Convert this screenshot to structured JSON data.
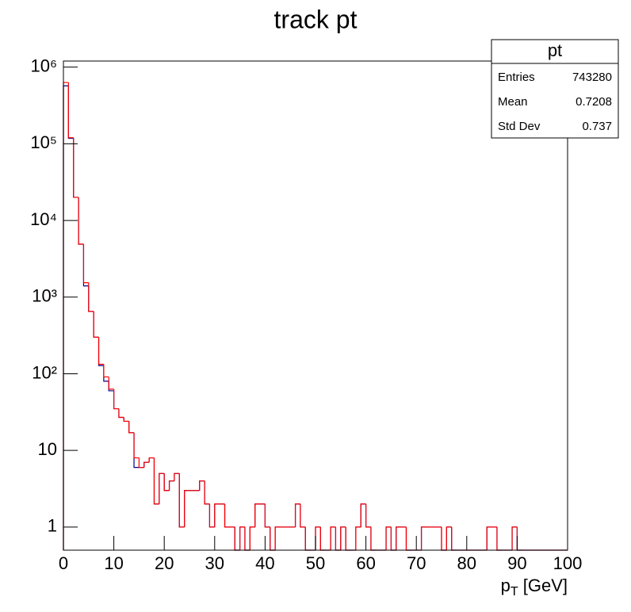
{
  "chart_data": {
    "type": "histogram",
    "title": "track pt",
    "x_label": [
      "p",
      "T",
      " [GeV]"
    ],
    "bins": [
      0,
      1,
      2,
      3,
      4,
      5,
      6,
      7,
      8,
      9,
      10,
      11,
      12,
      13,
      14,
      15,
      16,
      17,
      18,
      19,
      20,
      21,
      22,
      23,
      24,
      25,
      26,
      27,
      28,
      29,
      30,
      31,
      32,
      33,
      34,
      35,
      36,
      37,
      38,
      39,
      40,
      41,
      42,
      43,
      44,
      45,
      46,
      47,
      48,
      49,
      50,
      51,
      52,
      53,
      54,
      55,
      56,
      57,
      58,
      59,
      60,
      61,
      62,
      63,
      64,
      65,
      66,
      67,
      68,
      69,
      70,
      71,
      72,
      73,
      74,
      75,
      76,
      77,
      78,
      79,
      80,
      81,
      82,
      83,
      84,
      85,
      86,
      87,
      88,
      89,
      90,
      91,
      92,
      93,
      94,
      95,
      96,
      97,
      98,
      99,
      100
    ],
    "series": [
      {
        "name": "pt",
        "color": "#00008b",
        "values": [
          570000,
          118000,
          20000,
          4900,
          1400,
          650,
          300,
          128,
          80,
          60,
          35,
          27,
          24,
          17,
          6,
          6,
          7,
          8,
          2,
          5,
          3,
          4,
          5,
          1,
          3,
          3,
          3,
          4,
          2,
          1,
          2,
          2,
          1,
          1,
          0,
          1,
          0,
          1,
          2,
          2,
          1,
          0,
          1,
          1,
          1,
          1,
          2,
          1,
          0,
          0,
          1,
          0,
          0,
          1,
          0,
          1,
          0,
          0,
          1,
          2,
          1,
          0,
          0,
          0,
          1,
          0,
          1,
          1,
          0,
          0,
          0,
          1,
          1,
          1,
          1,
          0,
          1,
          0,
          0,
          0,
          0,
          0,
          0,
          0,
          1,
          1,
          0,
          0,
          0,
          1,
          0,
          0,
          0,
          0,
          0,
          0,
          0,
          0,
          0,
          0
        ]
      },
      {
        "name": "pt",
        "color": "#ff0000",
        "values": [
          630000,
          120000,
          20000,
          4900,
          1540,
          650,
          300,
          133,
          91,
          63,
          35,
          27,
          24,
          17,
          8,
          6,
          7,
          8,
          2,
          5,
          3,
          4,
          5,
          1,
          3,
          3,
          3,
          4,
          2,
          1,
          2,
          2,
          1,
          1,
          0,
          1,
          0,
          1,
          2,
          2,
          1,
          0,
          1,
          1,
          1,
          1,
          2,
          1,
          0,
          0,
          1,
          0,
          0,
          1,
          0,
          1,
          0,
          0,
          1,
          2,
          1,
          0,
          0,
          0,
          1,
          0,
          1,
          1,
          0,
          0,
          0,
          1,
          1,
          1,
          1,
          0,
          1,
          0,
          0,
          0,
          0,
          0,
          0,
          0,
          1,
          1,
          0,
          0,
          0,
          1,
          0,
          0,
          0,
          0,
          0,
          0,
          0,
          0,
          0,
          0
        ]
      }
    ],
    "xlim": [
      0,
      100
    ],
    "xticks": [
      0,
      10,
      20,
      30,
      40,
      50,
      60,
      70,
      80,
      90,
      100
    ],
    "ylim": [
      0.5,
      1200000
    ],
    "yticks": [
      1,
      10,
      {
        "value": 100,
        "label": "10²"
      },
      {
        "value": 1000,
        "label": "10³"
      },
      {
        "value": 10000,
        "label": "10⁴"
      },
      {
        "value": 100000,
        "label": "10⁵"
      },
      {
        "value": 1000000,
        "label": "10⁶"
      }
    ],
    "log_y": true,
    "stats": {
      "title": "pt",
      "rows": [
        [
          "Entries",
          "743280"
        ],
        [
          "Mean",
          "0.7208"
        ],
        [
          "Std Dev",
          "0.737"
        ]
      ]
    }
  }
}
